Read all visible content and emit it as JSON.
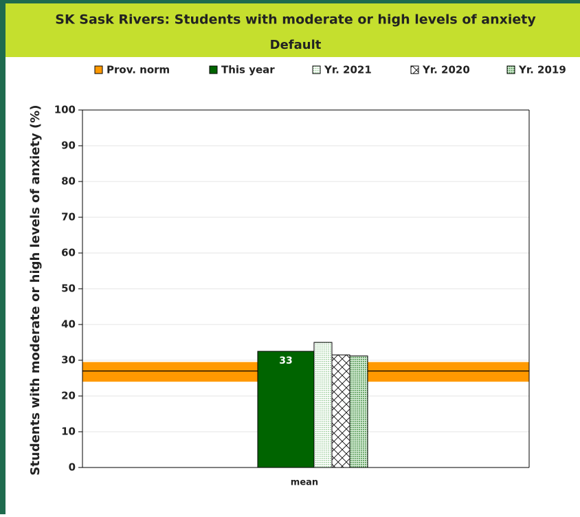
{
  "chart_data": {
    "type": "bar",
    "title": "SK Sask Rivers: Students with moderate or high levels of anxiety",
    "subtitle": "Default",
    "y_label": "Students with moderate or high levels of anxiety (%)",
    "categories": [
      "mean"
    ],
    "norm": {
      "name": "Prov. norm",
      "color": "#ff9900",
      "values": [
        27
      ],
      "band": [
        24,
        29.5
      ]
    },
    "series": [
      {
        "name": "This year",
        "color": "#006400",
        "pattern": "solid",
        "values": [
          32.5
        ],
        "value_labels": [
          "33"
        ]
      },
      {
        "name": "Yr. 2021",
        "color": "#9fcf9f",
        "pattern": "dots",
        "values": [
          35
        ]
      },
      {
        "name": "Yr. 2020",
        "color": "#000000",
        "pattern": "crosshatch",
        "values": [
          31.5
        ]
      },
      {
        "name": "Yr. 2019",
        "color": "#4a9a4a",
        "pattern": "dots",
        "values": [
          31.2
        ]
      }
    ],
    "ylim": [
      0,
      100
    ],
    "yticks": [
      0,
      10,
      20,
      30,
      40,
      50,
      60,
      70,
      80,
      90,
      100
    ],
    "grid": true
  }
}
